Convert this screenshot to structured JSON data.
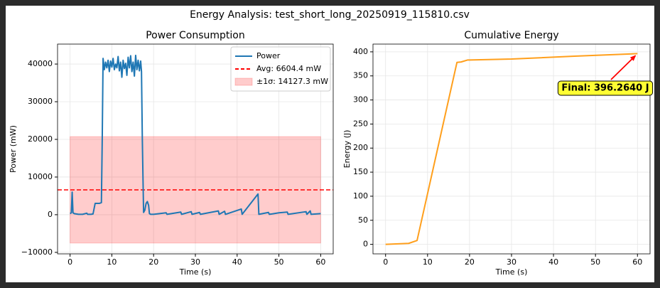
{
  "suptitle": "Energy Analysis: test_short_long_20250919_115810.csv",
  "chart_data": [
    {
      "type": "line",
      "title": "Power Consumption",
      "xlabel": "Time (s)",
      "ylabel": "Power (mW)",
      "xlim": [
        -3,
        63
      ],
      "xticks": [
        0,
        10,
        20,
        30,
        40,
        50,
        60
      ],
      "ylim": [
        -10400,
        45300
      ],
      "yticks": [
        {
          "value": -10000,
          "label": "−10000"
        },
        0,
        10000,
        20000,
        30000,
        40000
      ],
      "grid": true,
      "legend": "upper right",
      "series": [
        {
          "name": "Power",
          "type": "line",
          "color": "#1f77b4",
          "x": [
            0,
            0.3,
            0.5,
            0.7,
            1,
            2,
            3,
            4,
            4.2,
            5,
            5.5,
            6,
            7,
            7.5,
            7.7,
            7.9,
            8.2,
            8.5,
            8.8,
            9.1,
            9.4,
            9.7,
            10,
            10.3,
            10.6,
            10.9,
            11.2,
            11.5,
            11.8,
            12.1,
            12.4,
            12.7,
            13,
            13.3,
            13.6,
            13.9,
            14.2,
            14.5,
            14.8,
            15.1,
            15.4,
            15.7,
            16,
            16.3,
            16.6,
            16.9,
            17.1,
            17.3,
            17.6,
            17.9,
            18.2,
            18.5,
            18.8,
            19,
            19.3,
            20,
            23,
            23.2,
            26.5,
            26.7,
            29,
            29.2,
            31,
            31.2,
            35.5,
            35.7,
            37,
            37.2,
            41,
            41.2,
            45,
            45.2,
            47.5,
            47.7,
            50,
            52,
            52.2,
            56.5,
            56.7,
            57.5,
            57.7,
            60
          ],
          "values": [
            300,
            500,
            6000,
            500,
            300,
            100,
            100,
            400,
            100,
            100,
            200,
            3000,
            3000,
            3200,
            20000,
            41500,
            38500,
            40500,
            39000,
            41000,
            38000,
            40800,
            39200,
            41500,
            38500,
            40000,
            39000,
            42000,
            38200,
            40500,
            36500,
            41000,
            38800,
            40200,
            37000,
            41800,
            39000,
            42200,
            38000,
            40500,
            36800,
            42300,
            38500,
            41000,
            38200,
            40800,
            38000,
            20000,
            600,
            1200,
            3000,
            3500,
            2500,
            300,
            100,
            100,
            500,
            100,
            700,
            100,
            800,
            100,
            600,
            100,
            1000,
            100,
            900,
            100,
            1500,
            100,
            5500,
            100,
            600,
            100,
            500,
            700,
            100,
            800,
            100,
            1000,
            100,
            300
          ]
        },
        {
          "name": "Avg: 6604.4 mW",
          "type": "hline",
          "color": "#ff0000",
          "style": "dashed",
          "value": 6604.4
        },
        {
          "name": "±1σ: 14127.3 mW",
          "type": "band",
          "color": "#ff0000",
          "opacity": 0.2,
          "value": 14127.3,
          "x": [
            0,
            60
          ]
        }
      ]
    },
    {
      "type": "line",
      "title": "Cumulative Energy",
      "xlabel": "Time (s)",
      "ylabel": "Energy (J)",
      "xlim": [
        -3,
        63
      ],
      "xticks": [
        0,
        10,
        20,
        30,
        40,
        50,
        60
      ],
      "ylim": [
        -19.8,
        416.1
      ],
      "yticks": [
        0,
        50,
        100,
        150,
        200,
        250,
        300,
        350,
        400
      ],
      "grid": true,
      "series": [
        {
          "name": "Energy",
          "type": "line",
          "color": "#ff9f1c",
          "x": [
            0,
            5.5,
            7.5,
            17,
            18,
            19.5,
            20,
            30,
            45,
            60
          ],
          "values": [
            0,
            2,
            8,
            378,
            379,
            383,
            383,
            385,
            391,
            396.264
          ]
        }
      ],
      "annotation": {
        "text": "Final: 396.2640 J",
        "color": "#ff0000",
        "box_color": "#ffff33"
      }
    }
  ]
}
